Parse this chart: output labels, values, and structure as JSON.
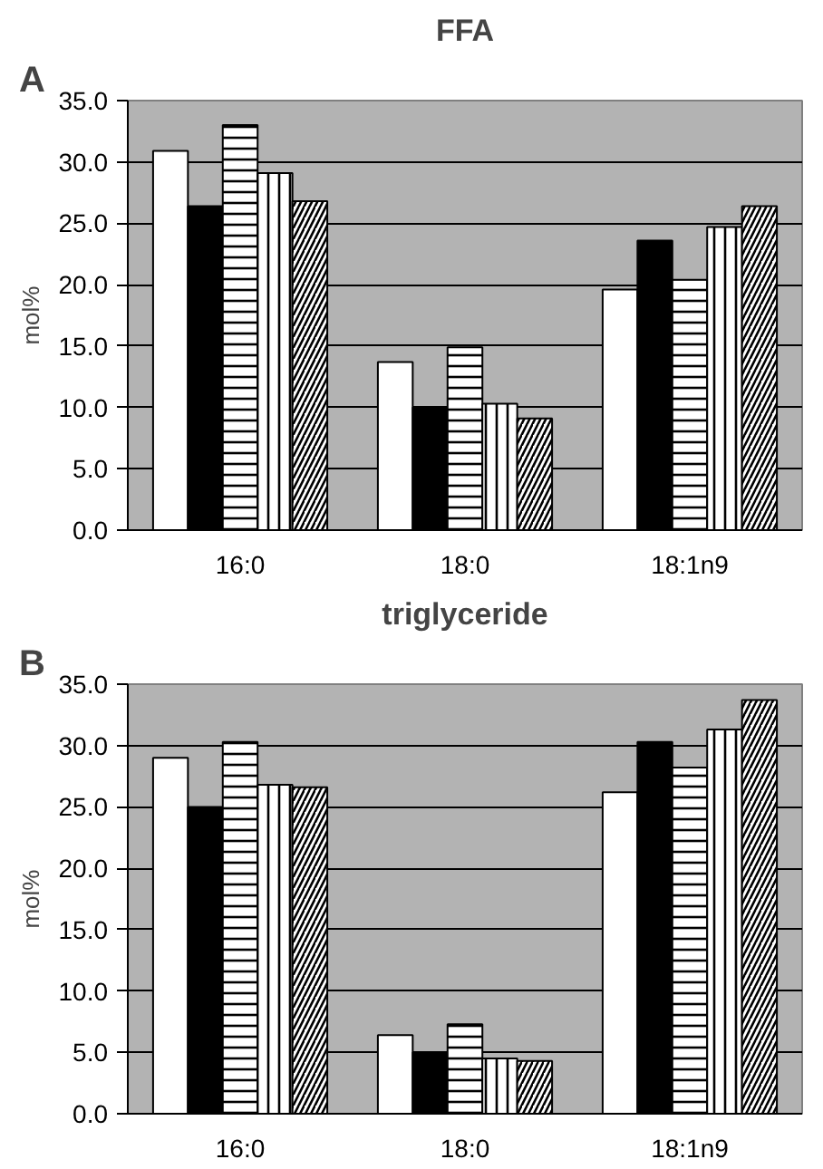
{
  "chart_data": [
    {
      "type": "bar",
      "title": "FFA",
      "ylabel": "mol%",
      "annotations": [
        "A"
      ],
      "categories": [
        "16:0",
        "18:0",
        "18:1n9"
      ],
      "series": [
        {
          "color": "#ffffff",
          "values": [
            30.9,
            13.7,
            19.6
          ]
        },
        {
          "color": "#000000",
          "values": [
            26.4,
            10.0,
            23.6
          ]
        },
        {
          "color": "#ffffff",
          "values": [
            33.0,
            14.9,
            20.4
          ]
        },
        {
          "color": "#ffffff",
          "values": [
            29.1,
            10.3,
            24.7
          ]
        },
        {
          "color": "#ffffff",
          "values": [
            26.8,
            9.1,
            26.4
          ]
        }
      ],
      "ylim": [
        0,
        35
      ],
      "yticks": [
        {
          "value": 0,
          "label": "0.0"
        },
        {
          "value": 5,
          "label": "5.0"
        },
        {
          "value": 10,
          "label": "10.0"
        },
        {
          "value": 15,
          "label": "15.0"
        },
        {
          "value": 20,
          "label": "20.0"
        },
        {
          "value": 25,
          "label": "25.0"
        },
        {
          "value": 30,
          "label": "30.0"
        },
        {
          "value": 35,
          "label": "35.0"
        }
      ],
      "grid": "y"
    },
    {
      "type": "bar",
      "title": "triglyceride",
      "ylabel": "mol%",
      "annotations": [
        "B"
      ],
      "categories": [
        "16:0",
        "18:0",
        "18:1n9"
      ],
      "series": [
        {
          "color": "#ffffff",
          "values": [
            29.0,
            6.4,
            26.2
          ]
        },
        {
          "color": "#000000",
          "values": [
            25.0,
            5.0,
            30.3
          ]
        },
        {
          "color": "#ffffff",
          "values": [
            30.3,
            7.3,
            28.2
          ]
        },
        {
          "color": "#ffffff",
          "values": [
            26.8,
            4.5,
            31.3
          ]
        },
        {
          "color": "#ffffff",
          "values": [
            26.6,
            4.3,
            33.7
          ]
        }
      ],
      "ylim": [
        0,
        35
      ],
      "yticks": [
        {
          "value": 0,
          "label": "0.0"
        },
        {
          "value": 5,
          "label": "5.0"
        },
        {
          "value": 10,
          "label": "10.0"
        },
        {
          "value": 15,
          "label": "15.0"
        },
        {
          "value": 20,
          "label": "20.0"
        },
        {
          "value": 25,
          "label": "25.0"
        },
        {
          "value": 30,
          "label": "30.0"
        },
        {
          "value": 35,
          "label": "35.0"
        }
      ],
      "grid": "y"
    }
  ]
}
